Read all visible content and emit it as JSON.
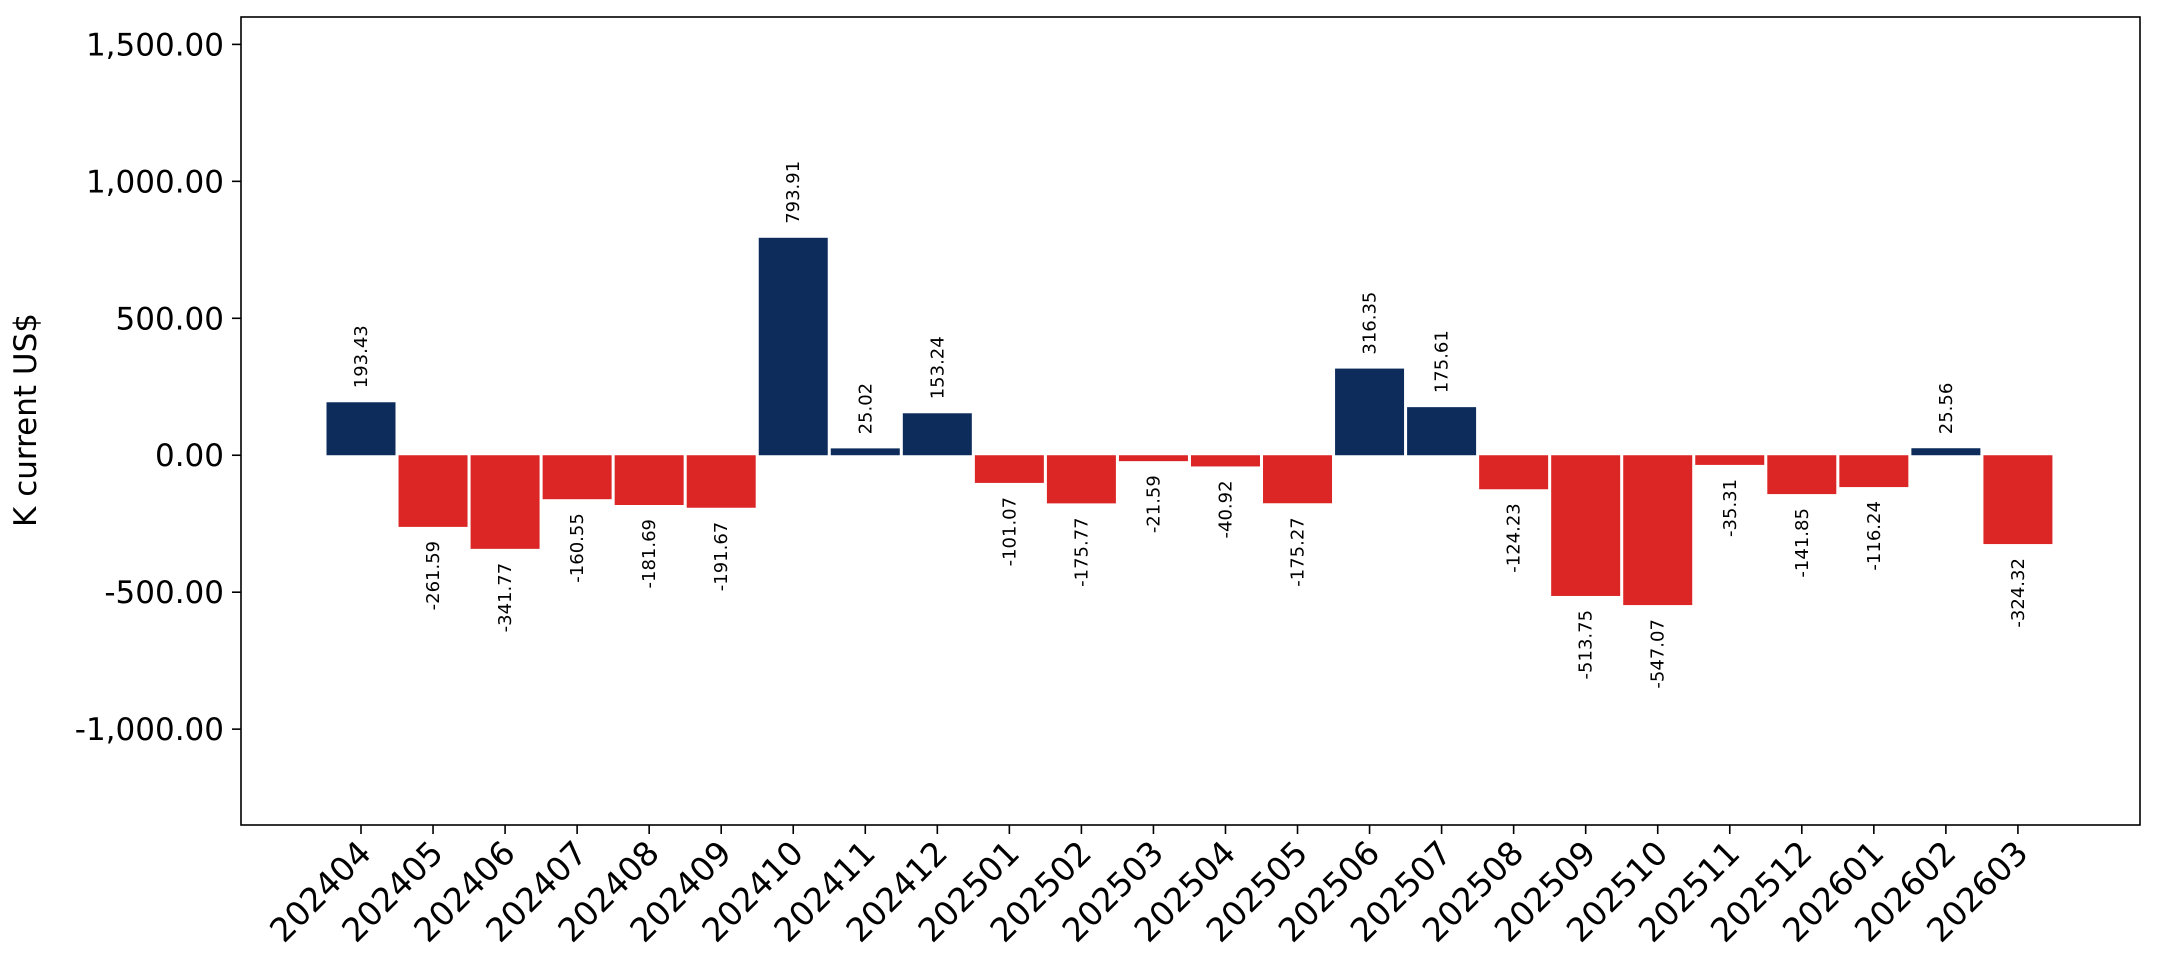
{
  "chart_data": {
    "type": "bar",
    "title": "",
    "xlabel": "",
    "ylabel": "K current US$",
    "ylim": [
      -1350,
      1600
    ],
    "yticks": [
      -1000,
      -500,
      0,
      500,
      1000,
      1500
    ],
    "ytick_labels": [
      "-1,000.00",
      "-500.00",
      "0.00",
      "500.00",
      "1,000.00",
      "1,500.00"
    ],
    "grid": false,
    "legend": "none",
    "positive_color": "#0d2c5c",
    "negative_color": "#dc2626",
    "categories": [
      "202404",
      "202405",
      "202406",
      "202407",
      "202408",
      "202409",
      "202410",
      "202411",
      "202412",
      "202501",
      "202502",
      "202503",
      "202504",
      "202505",
      "202506",
      "202507",
      "202508",
      "202509",
      "202510",
      "202511",
      "202512",
      "202601",
      "202602",
      "202603"
    ],
    "values": [
      193.43,
      -261.59,
      -341.77,
      -160.55,
      -181.69,
      -191.67,
      793.91,
      25.02,
      153.24,
      -101.07,
      -175.77,
      -21.59,
      -40.92,
      -175.27,
      316.35,
      175.61,
      -124.23,
      -513.75,
      -547.07,
      -35.31,
      -141.85,
      -116.24,
      25.56,
      -324.32
    ],
    "data_labels": [
      "193.43",
      "-261.59",
      "-341.77",
      "-160.55",
      "-181.69",
      "-191.67",
      "793.91",
      "25.02",
      "153.24",
      "-101.07",
      "-175.77",
      "-21.59",
      "-40.92",
      "-175.27",
      "316.35",
      "175.61",
      "-124.23",
      "-513.75",
      "-547.07",
      "-35.31",
      "-141.85",
      "-116.24",
      "25.56",
      "-324.32"
    ]
  }
}
